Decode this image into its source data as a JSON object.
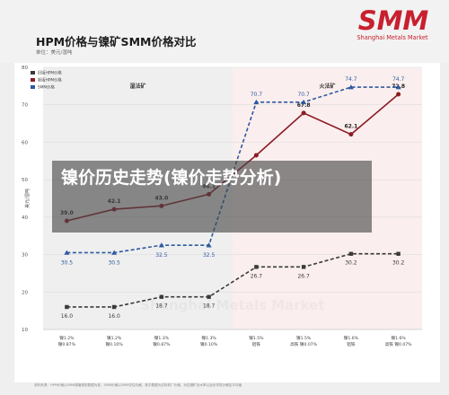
{
  "header": {
    "title": "HPM价格与镍矿SMM价格对比",
    "unit": "单位：美元/湿吨"
  },
  "logo": {
    "name": "SMM",
    "subtitle": "Shanghai Metals Market",
    "color": "#c8202f"
  },
  "overlay": {
    "text": "镍价历史走势(镍价走势分析)"
  },
  "footnote": "资料来源：HPM价格以SMM增值税前数据为准，SMM价格以SMM评估价格，其中数据为实际到厂价格，对应镍矿含水率以及化学成分确定平均值",
  "watermark": "Shanghai Metals Market",
  "colors": {
    "series0": "#3a3a3a",
    "series1": "#8b1c25",
    "series2": "#2c5aa0",
    "section_left": "#efefef",
    "section_right": "#fbeeee"
  },
  "chart_data": {
    "type": "line",
    "ylabel": "美元/湿吨",
    "ylim": [
      10,
      80
    ],
    "yticks": [
      10,
      20,
      30,
      40,
      50,
      60,
      70,
      80
    ],
    "sections": [
      {
        "label": "湿法矿",
        "start": 0,
        "end": 3
      },
      {
        "label": "火法矿",
        "start": 4,
        "end": 7
      }
    ],
    "categories": [
      {
        "line1": "镍1.2%",
        "line2": "镍0.87%"
      },
      {
        "line1": "镍1.2%",
        "line2": "镍0.10%"
      },
      {
        "line1": "镍1.3%",
        "line2": "镍0.87%"
      },
      {
        "line1": "镍1.3%",
        "line2": "镍0.10%"
      },
      {
        "line1": "镍1.5%",
        "line2": "铝铁"
      },
      {
        "line1": "镍1.5%",
        "line2": "高铁 镍0.07%"
      },
      {
        "line1": "镍1.6%",
        "line2": "铝铁"
      },
      {
        "line1": "镍1.6%",
        "line2": "高铁 镍0.07%"
      }
    ],
    "series": [
      {
        "name": "旧版HPM价格",
        "values": [
          16.0,
          16.0,
          18.7,
          18.7,
          26.7,
          26.7,
          30.2,
          30.2
        ],
        "labels": [
          "16.0",
          "16.0",
          "18.7",
          "18.7",
          "26.7",
          "26.7",
          "30.2",
          "30.2"
        ]
      },
      {
        "name": "新版HPM价格",
        "values": [
          39.0,
          42.1,
          43.0,
          46.1,
          56.5,
          67.8,
          62.1,
          72.8
        ],
        "labels": [
          "39.0",
          "42.1",
          "43.0",
          "46.1",
          "",
          "67.8",
          "62.1",
          "72.8"
        ]
      },
      {
        "name": "SMM价格",
        "values": [
          30.5,
          30.5,
          32.5,
          32.5,
          70.7,
          70.7,
          74.7,
          74.7
        ],
        "labels": [
          "30.5",
          "30.5",
          "32.5",
          "32.5",
          "70.7",
          "70.7",
          "74.7",
          "74.7"
        ]
      }
    ]
  }
}
